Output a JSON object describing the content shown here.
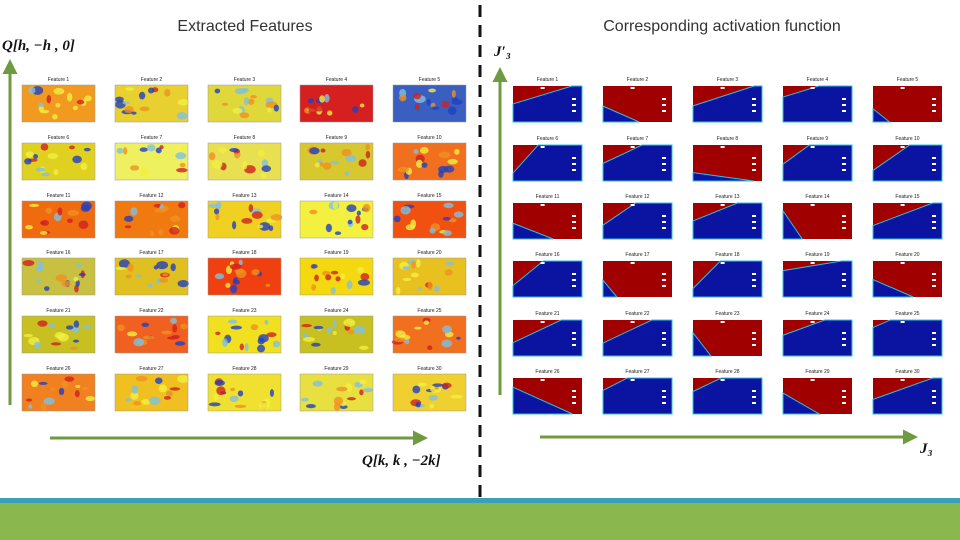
{
  "left_panel": {
    "title": "Extracted Features",
    "y_axis_label": "Q[h, −h , 0]",
    "x_axis_label": "Q[k, k , −2k]",
    "features": [
      "Feature 1",
      "Feature 2",
      "Feature 3",
      "Feature 4",
      "Feature 5",
      "Feature 6",
      "Feature 7",
      "Feature 8",
      "Feature 9",
      "Feature 10",
      "Feature 11",
      "Feature 12",
      "Feature 13",
      "Feature 14",
      "Feature 15",
      "Feature 16",
      "Feature 17",
      "Feature 18",
      "Feature 19",
      "Feature 20",
      "Feature 21",
      "Feature 22",
      "Feature 23",
      "Feature 24",
      "Feature 25",
      "Feature 26",
      "Feature 27",
      "Feature 28",
      "Feature 29",
      "Feature 30"
    ]
  },
  "right_panel": {
    "title": "Corresponding activation function",
    "y_axis_label": "J′₃",
    "x_axis_label": "J₃",
    "features": [
      "Feature 1",
      "Feature 2",
      "Feature 3",
      "Feature 4",
      "Feature 5",
      "Feature 6",
      "Feature 7",
      "Feature 8",
      "Feature 9",
      "Feature 10",
      "Feature 11",
      "Feature 12",
      "Feature 13",
      "Feature 14",
      "Feature 15",
      "Feature 16",
      "Feature 17",
      "Feature 18",
      "Feature 19",
      "Feature 20",
      "Feature 21",
      "Feature 22",
      "Feature 23",
      "Feature 24",
      "Feature 25",
      "Feature 26",
      "Feature 27",
      "Feature 28",
      "Feature 29",
      "Feature 30"
    ]
  }
}
